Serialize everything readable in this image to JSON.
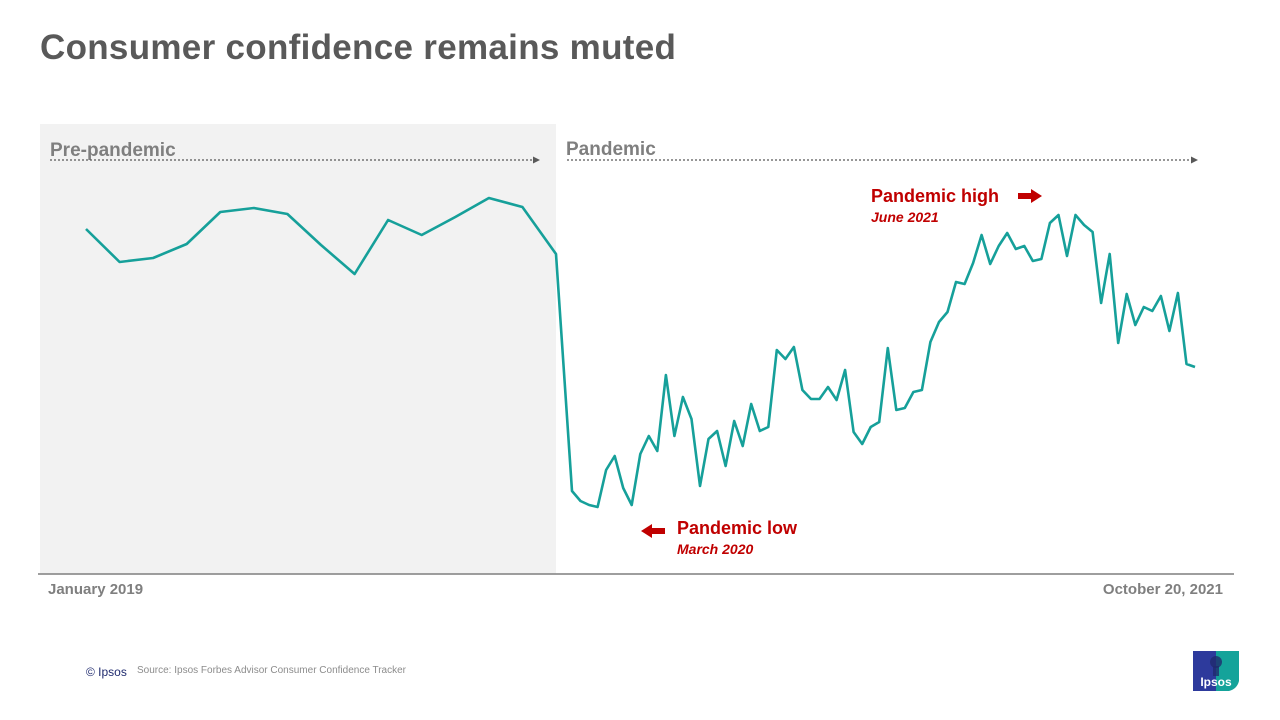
{
  "title": "Consumer confidence remains muted",
  "periods": {
    "pre": "Pre-pandemic",
    "pandemic": "Pandemic"
  },
  "annotations": {
    "high": {
      "label": "Pandemic high",
      "date": "June 2021"
    },
    "low": {
      "label": "Pandemic low",
      "date": "March 2020"
    }
  },
  "colors": {
    "line": "#16a09a",
    "annotation": "#c00000",
    "pre_panel": "#f2f2f2",
    "text": "#7f7f7f"
  },
  "footer": {
    "copyright": "© Ipsos",
    "source": "Source: Ipsos Forbes Advisor Consumer Confidence Tracker",
    "logo_text": "Ipsos"
  },
  "chart_data": {
    "type": "line",
    "title": "Consumer confidence remains muted",
    "x_start_label": "January 2019",
    "x_end_label": "October 20, 2021",
    "ylim": [
      0,
      450
    ],
    "y_axis_shown": false,
    "grid": false,
    "series": [
      {
        "segment": "Pre-pandemic",
        "values": [
          345,
          312,
          316,
          330,
          362,
          366,
          360,
          329,
          300,
          354,
          339,
          357,
          376,
          367,
          320
        ]
      },
      {
        "segment": "Pandemic",
        "values": [
          83,
          73,
          69,
          67,
          104,
          118,
          86,
          69,
          120,
          138,
          123,
          199,
          138,
          177,
          155,
          88,
          135,
          143,
          108,
          153,
          128,
          170,
          143,
          147,
          224,
          215,
          227,
          184,
          175,
          175,
          187,
          174,
          204,
          142,
          130,
          147,
          152,
          226,
          164,
          166,
          182,
          184,
          232,
          252,
          262,
          292,
          290,
          311,
          339,
          310,
          328,
          341,
          325,
          328,
          313,
          315,
          351,
          359,
          318,
          359,
          349,
          342,
          271,
          320,
          231,
          280,
          249,
          267,
          263,
          278,
          243,
          281,
          210,
          207
        ]
      }
    ]
  }
}
